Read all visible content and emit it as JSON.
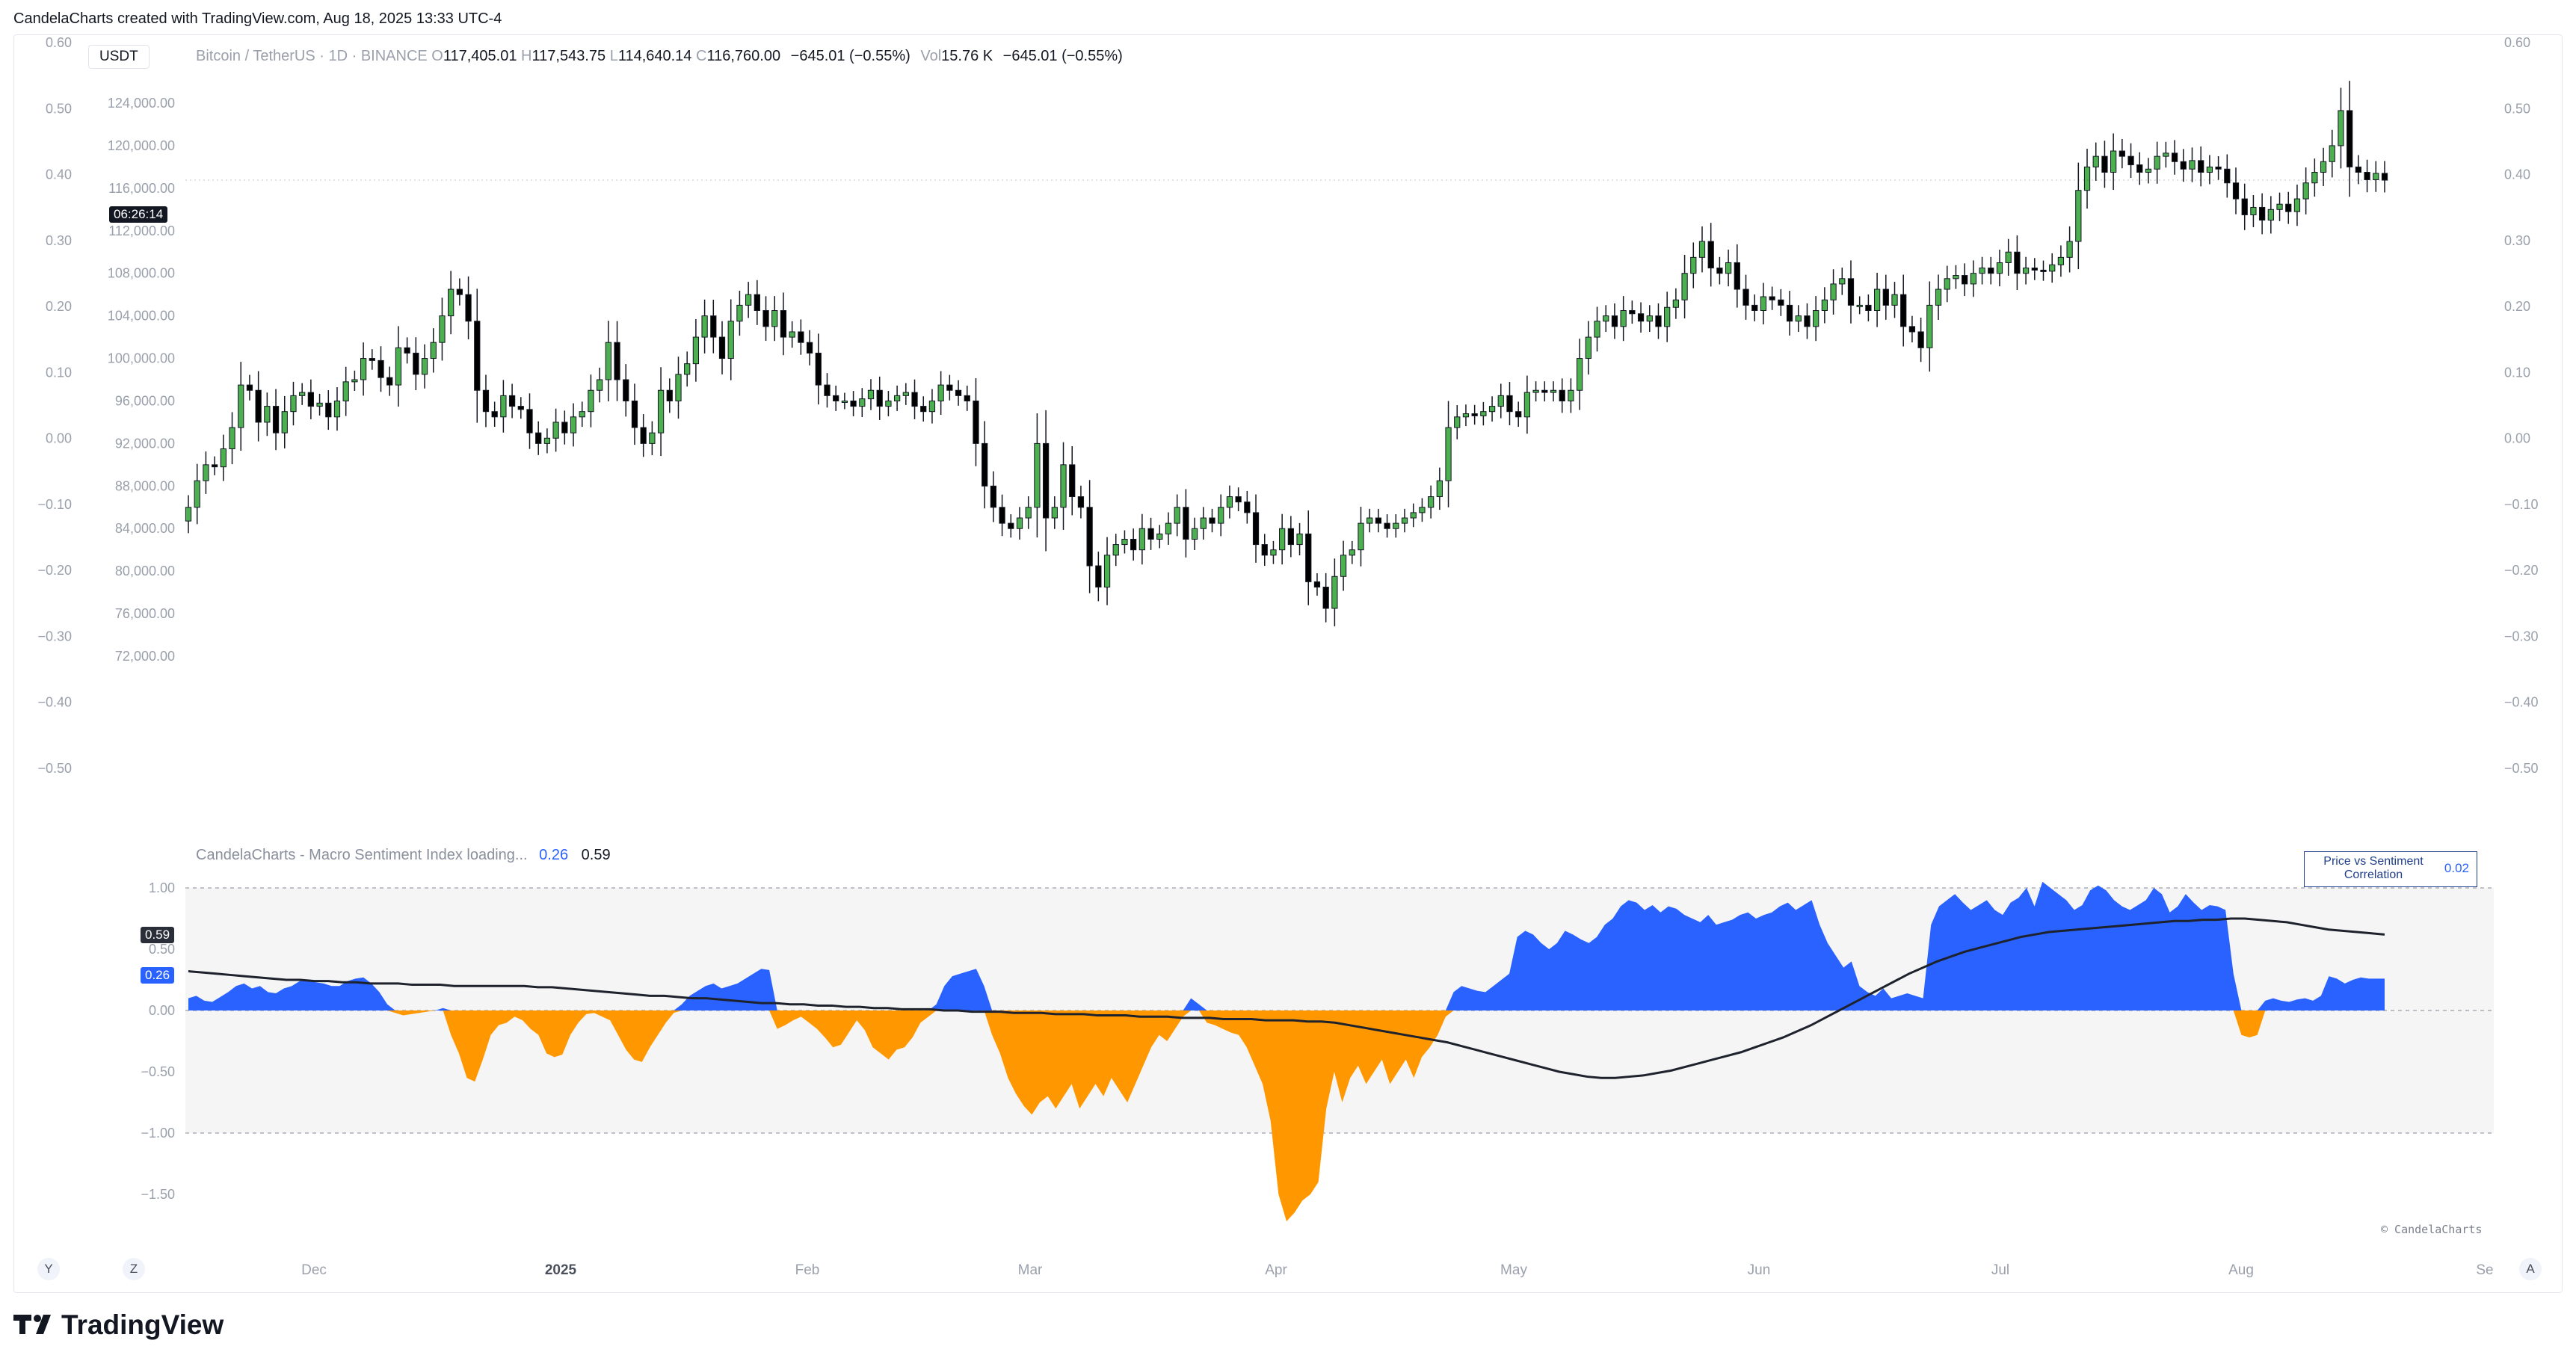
{
  "header": {
    "credit": "CandelaCharts created with TradingView.com, Aug 18, 2025 13:33 UTC-4"
  },
  "symbol_box": "USDT",
  "legend": {
    "symbol": "Bitcoin / TetherUS · 1D · BINANCE",
    "o_label": "O",
    "o_val": "117,405.01",
    "h_label": "H",
    "h_val": "117,543.75",
    "l_label": "L",
    "l_val": "114,640.14",
    "c_label": "C",
    "c_val": "116,760.00",
    "change": "−645.01 (−0.55%)",
    "vol_label": "Vol",
    "vol_val": "15.76 K",
    "vol_change": "−645.01 (−0.55%)"
  },
  "countdown": "06:26:14",
  "indicator": {
    "name": "CandelaCharts - Macro Sentiment Index loading...",
    "value1": "0.26",
    "value2": "0.59",
    "badge_value1": "0.59",
    "badge_value2": "0.26",
    "corr_title": "Price vs Sentiment Correlation",
    "corr_value": "0.02",
    "copyright": "© CandelaCharts"
  },
  "buttons": {
    "y": "Y",
    "z": "Z",
    "a": "A"
  },
  "logo": "TradingView",
  "colors": {
    "bull": "#4caf50",
    "bear": "#000000",
    "pos_area": "#2962ff",
    "neg_area": "#ff9800",
    "ma_line": "#1e222d"
  },
  "chart_data": [
    {
      "type": "candlestick",
      "title": "Bitcoin / TetherUS · 1D · BINANCE",
      "ylabel": "USDT",
      "ylim": [
        70000,
        126000
      ],
      "y_ticks": [
        "124,000.00",
        "120,000.00",
        "116,000.00",
        "112,000.00",
        "108,000.00",
        "104,000.00",
        "100,000.00",
        "96,000.00",
        "92,000.00",
        "88,000.00",
        "84,000.00",
        "80,000.00",
        "76,000.00",
        "72,000.00"
      ],
      "left_scale_ticks": [
        "0.60",
        "0.50",
        "0.40",
        "0.30",
        "0.20",
        "0.10",
        "0.00",
        "−0.10",
        "−0.20",
        "−0.30",
        "−0.40",
        "−0.50"
      ],
      "right_scale_ticks": [
        "0.60",
        "0.50",
        "0.40",
        "0.30",
        "0.20",
        "0.10",
        "0.00",
        "−0.10",
        "−0.20",
        "−0.30",
        "−0.40",
        "−0.50"
      ],
      "x_ticks": [
        "Dec",
        "2025",
        "Feb",
        "Mar",
        "Apr",
        "May",
        "Jun",
        "Jul",
        "Aug",
        "Se"
      ],
      "dates_range": [
        "2024-11-20",
        "2025-08-18"
      ],
      "close": [
        86000,
        88500,
        90000,
        89800,
        91500,
        93500,
        97500,
        97000,
        94000,
        95500,
        93000,
        95000,
        96500,
        96800,
        95500,
        95800,
        94500,
        96000,
        97800,
        98000,
        100000,
        99800,
        98200,
        97500,
        101000,
        100500,
        98500,
        100000,
        101500,
        104000,
        106500,
        106000,
        103500,
        97000,
        95000,
        94500,
        96500,
        95500,
        95200,
        93000,
        92000,
        92500,
        94000,
        93000,
        94500,
        95000,
        97000,
        98000,
        101500,
        98000,
        96000,
        93500,
        92000,
        93000,
        97000,
        96000,
        98500,
        99500,
        102000,
        104000,
        102000,
        100000,
        103500,
        105000,
        106000,
        104500,
        103000,
        104500,
        102000,
        102500,
        101500,
        100500,
        97500,
        96500,
        96000,
        96000,
        95500,
        96200,
        97000,
        95500,
        96000,
        96500,
        96800,
        95500,
        95000,
        96000,
        97500,
        97000,
        96500,
        96000,
        92000,
        88000,
        86000,
        84500,
        84000,
        85000,
        86000,
        92000,
        85000,
        86000,
        90000,
        87000,
        86000,
        80500,
        78500,
        81500,
        82500,
        83000,
        82000,
        84000,
        83000,
        83500,
        84500,
        86000,
        83000,
        84000,
        85000,
        84500,
        86000,
        87000,
        86500,
        85500,
        82500,
        81500,
        82000,
        84000,
        82500,
        83500,
        79000,
        78500,
        76500,
        79500,
        81500,
        82000,
        84500,
        85000,
        84500,
        84000,
        84500,
        85000,
        85500,
        86000,
        87000,
        88500,
        93500,
        94500,
        94800,
        94600,
        95000,
        95500,
        96500,
        95000,
        94500,
        96800,
        97000,
        96800,
        97000,
        96000,
        97000,
        100000,
        102000,
        103500,
        104000,
        103000,
        104500,
        104200,
        103500,
        104000,
        103000,
        104800,
        105500,
        108000,
        109500,
        111000,
        108500,
        108000,
        109000,
        106500,
        105000,
        104500,
        105800,
        105500,
        105000,
        103500,
        104000,
        103000,
        104500,
        105500,
        107000,
        107500,
        105000,
        105000,
        104500,
        106500,
        105000,
        106000,
        103000,
        102500,
        101000,
        105000,
        106500,
        107500,
        107800,
        107000,
        108000,
        108500,
        108000,
        109000,
        110000,
        108000,
        108500,
        108300,
        108200,
        108800,
        109500,
        111000,
        115800,
        118000,
        119000,
        117500,
        119500,
        119000,
        118200,
        117500,
        117800,
        119000,
        119300,
        118500,
        117800,
        118600,
        117500,
        118000,
        117800,
        116500,
        115000,
        113500,
        114200,
        113000,
        114000,
        114500,
        113800,
        115000,
        116500,
        117500,
        118500,
        120000,
        123300,
        118000,
        117500,
        116800,
        117400,
        116760
      ],
      "series": [
        {
          "name": "Macro Sentiment Index",
          "type": "area",
          "ylim": [
            -1.75,
            1.1
          ],
          "y_ticks": [
            "1.00",
            "0.50",
            "0.00",
            "−0.50",
            "−1.00",
            "−1.50"
          ],
          "values": [
            0.1,
            0.12,
            0.08,
            0.07,
            0.11,
            0.15,
            0.2,
            0.22,
            0.18,
            0.2,
            0.15,
            0.14,
            0.18,
            0.2,
            0.24,
            0.24,
            0.23,
            0.22,
            0.2,
            0.2,
            0.24,
            0.26,
            0.27,
            0.22,
            0.15,
            0.05,
            -0.02,
            -0.04,
            -0.03,
            -0.02,
            -0.01,
            0.0,
            0.02,
            -0.2,
            -0.35,
            -0.55,
            -0.58,
            -0.4,
            -0.2,
            -0.12,
            -0.1,
            -0.05,
            -0.08,
            -0.15,
            -0.2,
            -0.35,
            -0.38,
            -0.36,
            -0.2,
            -0.1,
            -0.03,
            -0.02,
            -0.05,
            -0.08,
            -0.2,
            -0.32,
            -0.4,
            -0.42,
            -0.3,
            -0.2,
            -0.1,
            -0.02,
            0.05,
            0.12,
            0.16,
            0.2,
            0.22,
            0.18,
            0.2,
            0.22,
            0.26,
            0.3,
            0.34,
            0.33,
            -0.15,
            -0.12,
            -0.08,
            -0.05,
            -0.1,
            -0.15,
            -0.22,
            -0.3,
            -0.28,
            -0.18,
            -0.08,
            -0.16,
            -0.3,
            -0.35,
            -0.4,
            -0.32,
            -0.3,
            -0.22,
            -0.1,
            -0.05,
            0.05,
            0.2,
            0.28,
            0.3,
            0.32,
            0.34,
            0.2,
            -0.2,
            -0.35,
            -0.55,
            -0.68,
            -0.78,
            -0.85,
            -0.75,
            -0.7,
            -0.8,
            -0.7,
            -0.6,
            -0.8,
            -0.7,
            -0.6,
            -0.7,
            -0.55,
            -0.65,
            -0.75,
            -0.6,
            -0.45,
            -0.3,
            -0.2,
            -0.25,
            -0.15,
            -0.05,
            0.1,
            0.05,
            -0.1,
            -0.12,
            -0.15,
            -0.18,
            -0.2,
            -0.3,
            -0.45,
            -0.6,
            -0.9,
            -1.5,
            -1.72,
            -1.65,
            -1.55,
            -1.5,
            -1.4,
            -0.8,
            -0.5,
            -0.75,
            -0.55,
            -0.45,
            -0.6,
            -0.5,
            -0.4,
            -0.6,
            -0.5,
            -0.4,
            -0.55,
            -0.38,
            -0.3,
            -0.2,
            -0.05,
            0.15,
            0.2,
            0.18,
            0.16,
            0.15,
            0.2,
            0.25,
            0.3,
            0.6,
            0.65,
            0.62,
            0.55,
            0.5,
            0.55,
            0.65,
            0.62,
            0.58,
            0.55,
            0.6,
            0.7,
            0.75,
            0.85,
            0.9,
            0.88,
            0.82,
            0.86,
            0.8,
            0.85,
            0.83,
            0.78,
            0.75,
            0.72,
            0.78,
            0.7,
            0.72,
            0.74,
            0.78,
            0.8,
            0.75,
            0.78,
            0.8,
            0.85,
            0.88,
            0.82,
            0.86,
            0.9,
            0.7,
            0.55,
            0.45,
            0.35,
            0.4,
            0.2,
            0.15,
            0.12,
            0.18,
            0.1,
            0.12,
            0.14,
            0.12,
            0.1,
            0.7,
            0.85,
            0.9,
            0.95,
            0.88,
            0.82,
            0.86,
            0.9,
            0.82,
            0.78,
            0.88,
            0.92,
            1.0,
            0.85,
            1.05,
            1.0,
            0.95,
            0.9,
            0.82,
            0.86,
            0.98,
            1.02,
            0.98,
            0.9,
            0.85,
            0.82,
            0.86,
            0.9,
            1.0,
            0.95,
            0.8,
            0.85,
            0.95,
            0.88,
            0.82,
            0.86,
            0.85,
            0.82,
            0.3,
            -0.2,
            -0.22,
            -0.2,
            0.08,
            0.1,
            0.08,
            0.07,
            0.09,
            0.1,
            0.08,
            0.12,
            0.28,
            0.26,
            0.22,
            0.25,
            0.27,
            0.26,
            0.26,
            0.26
          ]
        },
        {
          "name": "Moving average",
          "type": "line",
          "values": [
            0.32,
            0.31,
            0.3,
            0.29,
            0.28,
            0.27,
            0.26,
            0.25,
            0.25,
            0.24,
            0.24,
            0.23,
            0.23,
            0.22,
            0.22,
            0.22,
            0.21,
            0.21,
            0.21,
            0.2,
            0.2,
            0.2,
            0.2,
            0.2,
            0.2,
            0.19,
            0.19,
            0.18,
            0.17,
            0.16,
            0.15,
            0.14,
            0.13,
            0.12,
            0.12,
            0.11,
            0.1,
            0.1,
            0.09,
            0.08,
            0.07,
            0.06,
            0.06,
            0.05,
            0.05,
            0.04,
            0.04,
            0.03,
            0.03,
            0.02,
            0.02,
            0.01,
            0.01,
            0.01,
            0.0,
            0.0,
            -0.01,
            -0.01,
            -0.01,
            -0.02,
            -0.02,
            -0.02,
            -0.03,
            -0.03,
            -0.03,
            -0.04,
            -0.04,
            -0.04,
            -0.05,
            -0.05,
            -0.05,
            -0.06,
            -0.06,
            -0.06,
            -0.07,
            -0.07,
            -0.07,
            -0.08,
            -0.08,
            -0.08,
            -0.09,
            -0.09,
            -0.1,
            -0.12,
            -0.14,
            -0.16,
            -0.18,
            -0.2,
            -0.22,
            -0.24,
            -0.26,
            -0.29,
            -0.32,
            -0.35,
            -0.38,
            -0.41,
            -0.44,
            -0.47,
            -0.5,
            -0.52,
            -0.54,
            -0.55,
            -0.55,
            -0.54,
            -0.53,
            -0.51,
            -0.49,
            -0.46,
            -0.43,
            -0.4,
            -0.37,
            -0.34,
            -0.3,
            -0.26,
            -0.22,
            -0.17,
            -0.12,
            -0.06,
            0.0,
            0.06,
            0.12,
            0.18,
            0.24,
            0.3,
            0.35,
            0.4,
            0.44,
            0.48,
            0.51,
            0.54,
            0.57,
            0.6,
            0.62,
            0.64,
            0.65,
            0.66,
            0.67,
            0.68,
            0.69,
            0.7,
            0.71,
            0.72,
            0.73,
            0.73,
            0.74,
            0.74,
            0.75,
            0.75,
            0.74,
            0.73,
            0.72,
            0.7,
            0.68,
            0.66,
            0.65,
            0.64,
            0.63,
            0.62
          ]
        }
      ]
    }
  ]
}
